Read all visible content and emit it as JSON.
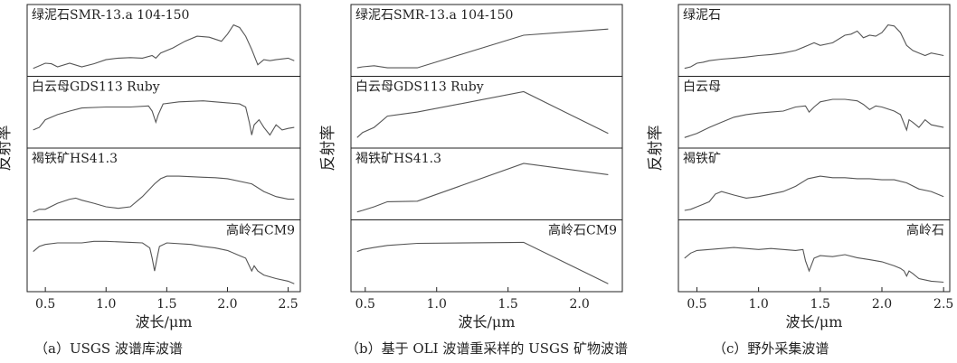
{
  "chart_data": [
    {
      "type": "line",
      "caption": "（a）USGS 波谱库波谱",
      "ylabel": "反射率",
      "xlabel": "波长/μm",
      "xlim": [
        0.35,
        2.6
      ],
      "xticks": [
        0.5,
        1.0,
        1.5,
        2.0,
        2.5
      ],
      "xtick_labels": [
        "0.5",
        "1.0",
        "1.5",
        "2.0",
        "2.5"
      ],
      "series": [
        {
          "name": "绿泥石SMR-13.a 104-150",
          "label_pos": "left",
          "x": [
            0.4,
            0.5,
            0.55,
            0.6,
            0.7,
            0.8,
            0.9,
            1.0,
            1.1,
            1.2,
            1.3,
            1.38,
            1.41,
            1.45,
            1.55,
            1.65,
            1.75,
            1.85,
            1.95,
            2.0,
            2.05,
            2.1,
            2.15,
            2.2,
            2.25,
            2.3,
            2.35,
            2.4,
            2.5,
            2.55
          ],
          "y": [
            0.05,
            0.15,
            0.14,
            0.08,
            0.15,
            0.08,
            0.14,
            0.22,
            0.25,
            0.26,
            0.25,
            0.3,
            0.25,
            0.35,
            0.45,
            0.58,
            0.68,
            0.66,
            0.58,
            0.72,
            0.9,
            0.85,
            0.68,
            0.42,
            0.12,
            0.22,
            0.2,
            0.22,
            0.25,
            0.2
          ]
        },
        {
          "name": "白云母GDS113 Ruby",
          "label_pos": "left",
          "x": [
            0.4,
            0.45,
            0.5,
            0.6,
            0.7,
            0.8,
            1.0,
            1.2,
            1.35,
            1.38,
            1.41,
            1.43,
            1.47,
            1.6,
            1.8,
            1.9,
            2.0,
            2.1,
            2.15,
            2.18,
            2.2,
            2.22,
            2.26,
            2.3,
            2.35,
            2.4,
            2.45,
            2.5,
            2.55
          ],
          "y": [
            0.25,
            0.3,
            0.45,
            0.55,
            0.62,
            0.68,
            0.7,
            0.7,
            0.72,
            0.62,
            0.4,
            0.55,
            0.76,
            0.8,
            0.82,
            0.8,
            0.78,
            0.76,
            0.7,
            0.4,
            0.15,
            0.35,
            0.45,
            0.3,
            0.15,
            0.35,
            0.25,
            0.28,
            0.3
          ]
        },
        {
          "name": "褐铁矿HS41.3",
          "label_pos": "left",
          "x": [
            0.4,
            0.45,
            0.5,
            0.6,
            0.7,
            0.75,
            0.8,
            0.9,
            1.0,
            1.1,
            1.2,
            1.3,
            1.4,
            1.45,
            1.5,
            1.6,
            1.8,
            1.9,
            2.0,
            2.2,
            2.3,
            2.4,
            2.5,
            2.55
          ],
          "y": [
            0.05,
            0.1,
            0.1,
            0.22,
            0.3,
            0.32,
            0.28,
            0.22,
            0.15,
            0.12,
            0.15,
            0.35,
            0.6,
            0.7,
            0.75,
            0.75,
            0.73,
            0.72,
            0.7,
            0.6,
            0.45,
            0.35,
            0.3,
            0.3
          ]
        },
        {
          "name": "高岭石CM9",
          "label_pos": "right",
          "x": [
            0.4,
            0.45,
            0.5,
            0.6,
            0.8,
            0.9,
            1.0,
            1.2,
            1.3,
            1.36,
            1.38,
            1.4,
            1.42,
            1.44,
            1.5,
            1.7,
            1.8,
            1.9,
            2.0,
            2.1,
            2.15,
            2.18,
            2.2,
            2.22,
            2.25,
            2.3,
            2.4,
            2.5,
            2.55
          ],
          "y": [
            0.68,
            0.78,
            0.82,
            0.85,
            0.85,
            0.88,
            0.88,
            0.86,
            0.85,
            0.75,
            0.55,
            0.3,
            0.55,
            0.78,
            0.85,
            0.82,
            0.78,
            0.75,
            0.7,
            0.6,
            0.55,
            0.4,
            0.3,
            0.4,
            0.3,
            0.22,
            0.15,
            0.1,
            0.05
          ]
        }
      ]
    },
    {
      "type": "line",
      "caption": "（b）基于 OLI 波谱重采样的 USGS 矿物波谱",
      "ylabel": "反射率",
      "xlabel": "波长/μm",
      "xlim": [
        0.4,
        2.3
      ],
      "xticks": [
        0.5,
        1.0,
        1.5,
        2.0
      ],
      "xtick_labels": [
        "0.5",
        "1.0",
        "1.5",
        "2.0"
      ],
      "series": [
        {
          "name": "绿泥石SMR-13.a 104-150",
          "label_pos": "left",
          "x": [
            0.443,
            0.482,
            0.562,
            0.655,
            0.865,
            1.609,
            2.201
          ],
          "y": [
            0.06,
            0.08,
            0.1,
            0.06,
            0.06,
            0.7,
            0.82
          ]
        },
        {
          "name": "白云母GDS113 Ruby",
          "label_pos": "left",
          "x": [
            0.443,
            0.482,
            0.562,
            0.655,
            0.865,
            1.609,
            2.201
          ],
          "y": [
            0.1,
            0.2,
            0.3,
            0.52,
            0.6,
            1.0,
            0.18
          ]
        },
        {
          "name": "褐铁矿HS41.3",
          "label_pos": "left",
          "x": [
            0.443,
            0.482,
            0.562,
            0.655,
            0.865,
            1.609,
            2.201
          ],
          "y": [
            0.05,
            0.08,
            0.15,
            0.25,
            0.26,
            1.0,
            0.78
          ]
        },
        {
          "name": "高岭石CM9",
          "label_pos": "right",
          "x": [
            0.443,
            0.482,
            0.562,
            0.655,
            0.865,
            1.609,
            2.201
          ],
          "y": [
            0.68,
            0.72,
            0.76,
            0.8,
            0.84,
            0.86,
            0.05
          ]
        }
      ]
    },
    {
      "type": "line",
      "caption": "（c）野外采集波谱",
      "ylabel": "反射率",
      "xlabel": "波长/μm",
      "xlim": [
        0.35,
        2.55
      ],
      "xticks": [
        0.5,
        1.0,
        1.5,
        2.0,
        2.5
      ],
      "xtick_labels": [
        "0.5",
        "1.0",
        "1.5",
        "2.0",
        "2.5"
      ],
      "series": [
        {
          "name": "绿泥石",
          "label_pos": "left",
          "x": [
            0.4,
            0.45,
            0.5,
            0.55,
            0.6,
            0.7,
            0.8,
            0.9,
            1.0,
            1.1,
            1.2,
            1.3,
            1.4,
            1.45,
            1.5,
            1.6,
            1.7,
            1.75,
            1.8,
            1.85,
            1.9,
            1.95,
            2.0,
            2.05,
            2.1,
            2.15,
            2.2,
            2.25,
            2.3,
            2.35,
            2.4,
            2.5
          ],
          "y": [
            0.05,
            0.08,
            0.15,
            0.17,
            0.2,
            0.23,
            0.25,
            0.27,
            0.3,
            0.32,
            0.35,
            0.4,
            0.5,
            0.55,
            0.5,
            0.55,
            0.7,
            0.72,
            0.78,
            0.65,
            0.7,
            0.68,
            0.75,
            0.9,
            0.88,
            0.75,
            0.5,
            0.4,
            0.35,
            0.3,
            0.35,
            0.3
          ]
        },
        {
          "name": "白云母",
          "label_pos": "left",
          "x": [
            0.4,
            0.5,
            0.6,
            0.7,
            0.8,
            0.9,
            1.0,
            1.1,
            1.2,
            1.3,
            1.38,
            1.41,
            1.45,
            1.5,
            1.6,
            1.7,
            1.8,
            1.85,
            1.9,
            1.95,
            2.0,
            2.1,
            2.15,
            2.2,
            2.22,
            2.25,
            2.3,
            2.35,
            2.4,
            2.5
          ],
          "y": [
            0.1,
            0.18,
            0.3,
            0.4,
            0.5,
            0.55,
            0.58,
            0.6,
            0.62,
            0.7,
            0.72,
            0.6,
            0.7,
            0.8,
            0.85,
            0.85,
            0.82,
            0.75,
            0.65,
            0.72,
            0.7,
            0.62,
            0.55,
            0.25,
            0.45,
            0.4,
            0.3,
            0.45,
            0.35,
            0.3
          ]
        },
        {
          "name": "褐铁矿",
          "label_pos": "left",
          "x": [
            0.4,
            0.45,
            0.5,
            0.55,
            0.6,
            0.65,
            0.7,
            0.8,
            0.9,
            1.0,
            1.1,
            1.2,
            1.3,
            1.4,
            1.5,
            1.6,
            1.7,
            1.8,
            1.9,
            2.0,
            2.1,
            2.2,
            2.3,
            2.4,
            2.5
          ],
          "y": [
            0.08,
            0.1,
            0.15,
            0.2,
            0.25,
            0.4,
            0.45,
            0.38,
            0.32,
            0.35,
            0.4,
            0.45,
            0.55,
            0.7,
            0.75,
            0.72,
            0.72,
            0.7,
            0.7,
            0.68,
            0.68,
            0.62,
            0.5,
            0.45,
            0.35
          ]
        },
        {
          "name": "高岭石",
          "label_pos": "right",
          "x": [
            0.4,
            0.45,
            0.5,
            0.6,
            0.7,
            0.8,
            0.9,
            1.0,
            1.1,
            1.2,
            1.3,
            1.36,
            1.38,
            1.41,
            1.45,
            1.5,
            1.6,
            1.7,
            1.8,
            1.9,
            2.0,
            2.1,
            2.15,
            2.18,
            2.2,
            2.22,
            2.25,
            2.3,
            2.4,
            2.5
          ],
          "y": [
            0.55,
            0.65,
            0.7,
            0.72,
            0.74,
            0.76,
            0.74,
            0.72,
            0.74,
            0.72,
            0.7,
            0.72,
            0.5,
            0.3,
            0.55,
            0.6,
            0.58,
            0.62,
            0.56,
            0.52,
            0.48,
            0.4,
            0.35,
            0.3,
            0.2,
            0.3,
            0.25,
            0.15,
            0.1,
            0.08
          ]
        }
      ]
    }
  ]
}
